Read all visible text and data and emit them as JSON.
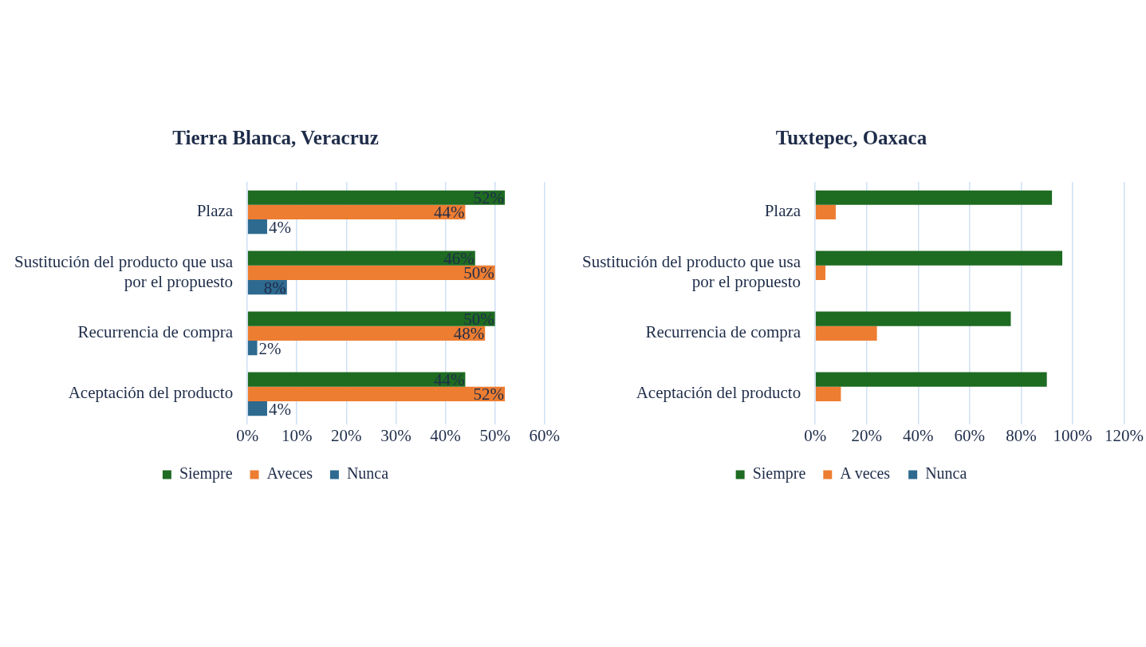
{
  "chart_data": [
    {
      "type": "bar",
      "orientation": "horizontal",
      "title": "Tierra Blanca, Veracruz",
      "categories": [
        "Plaza",
        "Sustitución del producto que usa por el propuesto",
        "Recurrencia de compra",
        "Aceptación del producto"
      ],
      "series": [
        {
          "name": "Siempre",
          "color": "#1e6b22",
          "values": [
            52,
            46,
            50,
            44
          ],
          "value_labels": [
            "52%",
            "46%",
            "50%",
            "44%"
          ]
        },
        {
          "name": "Aveces",
          "color": "#ed7d31",
          "values": [
            44,
            50,
            48,
            52
          ],
          "value_labels": [
            "44%",
            "50%",
            "48%",
            "52%"
          ]
        },
        {
          "name": "Nunca",
          "color": "#2e6a90",
          "values": [
            4,
            8,
            2,
            4
          ],
          "value_labels": [
            "4%",
            "8%",
            "2%",
            "4%"
          ]
        }
      ],
      "xlim": [
        0,
        60
      ],
      "xticks": [
        {
          "value": 0,
          "label": "0%"
        },
        {
          "value": 10,
          "label": "10%"
        },
        {
          "value": 20,
          "label": "20%"
        },
        {
          "value": 30,
          "label": "30%"
        },
        {
          "value": 40,
          "label": "40%"
        },
        {
          "value": 50,
          "label": "50%"
        },
        {
          "value": 60,
          "label": "60%"
        }
      ],
      "grid": "x",
      "legend": "bottom"
    },
    {
      "type": "bar",
      "orientation": "horizontal",
      "title": "Tuxtepec, Oaxaca",
      "categories": [
        "Plaza",
        "Sustitución del producto que usa por el propuesto",
        "Recurrencia de compra",
        "Aceptación del producto"
      ],
      "series": [
        {
          "name": "Siempre",
          "color": "#1e6b22",
          "values": [
            92,
            96,
            76,
            90
          ]
        },
        {
          "name": "A veces",
          "color": "#ed7d31",
          "values": [
            8,
            4,
            24,
            10
          ]
        },
        {
          "name": "Nunca",
          "color": "#2e6a90",
          "values": [
            0,
            0,
            0,
            0
          ]
        }
      ],
      "xlim": [
        0,
        120
      ],
      "xticks": [
        {
          "value": 0,
          "label": "0%"
        },
        {
          "value": 20,
          "label": "20%"
        },
        {
          "value": 40,
          "label": "40%"
        },
        {
          "value": 60,
          "label": "60%"
        },
        {
          "value": 80,
          "label": "80%"
        },
        {
          "value": 100,
          "label": "100%"
        },
        {
          "value": 120,
          "label": "120%"
        }
      ],
      "grid": "x",
      "legend": "bottom"
    }
  ]
}
